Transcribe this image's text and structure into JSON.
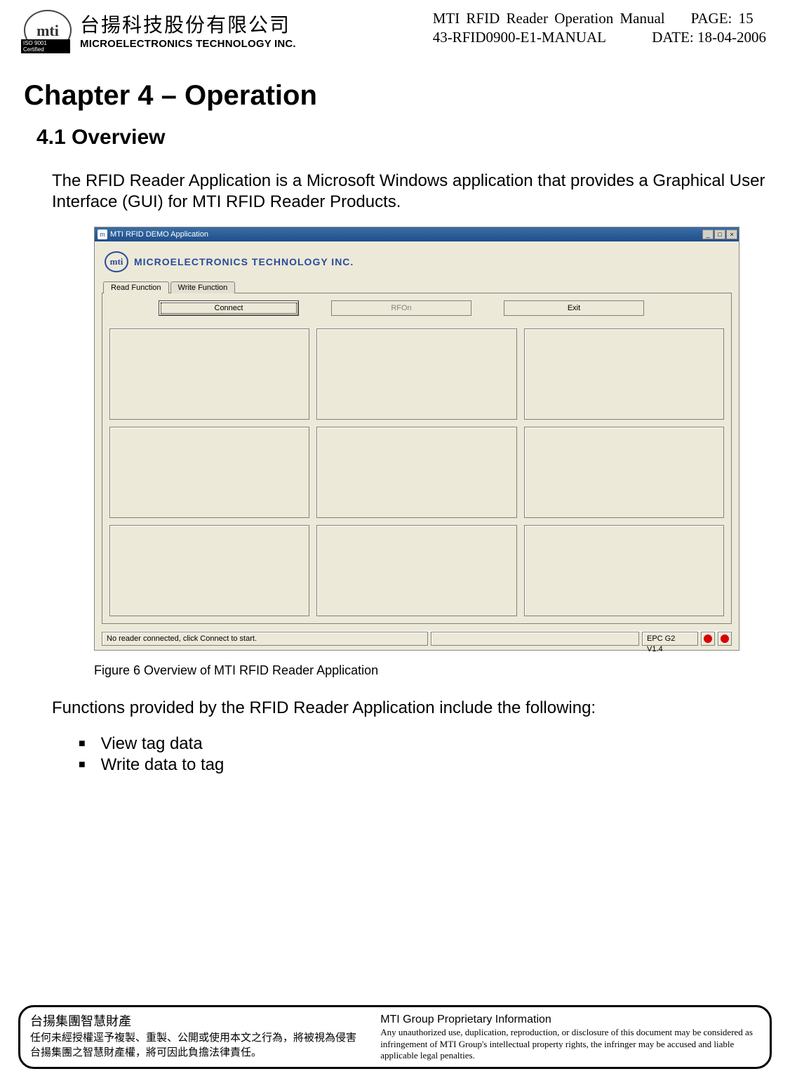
{
  "header": {
    "logo_text": "mti",
    "iso_badge": "ISO 9001 Certified",
    "company_cn": "台揚科技股份有限公司",
    "company_en": "MICROELECTRONICS TECHNOLOGY INC.",
    "doc_title": "MTI RFID Reader  Operation Manual",
    "page_label": "PAGE: 15",
    "doc_number": "43-RFID0900-E1-MANUAL",
    "date_label": "DATE: 18-04-2006"
  },
  "chapter_title": "Chapter 4 – Operation",
  "section_title": "4.1 Overview",
  "intro_text": "The RFID Reader Application is a Microsoft Windows application that provides a Graphical User Interface (GUI) for MTI RFID Reader Products.",
  "app_window": {
    "title": "MTI RFID DEMO Application",
    "brand_logo_text": "mti",
    "brand_text": "MICROELECTRONICS TECHNOLOGY INC.",
    "tabs": [
      "Read Function",
      "Write Function"
    ],
    "buttons": {
      "connect": "Connect",
      "rfon": "RFOn",
      "exit": "Exit"
    },
    "status_text": "No reader connected, click Connect to start.",
    "version_text": "EPC G2 V1.4",
    "led_color_1": "#d90000",
    "led_color_2": "#d90000",
    "window_controls": {
      "min": "_",
      "max": "□",
      "close": "×"
    }
  },
  "figure_caption": "Figure 6 Overview of MTI RFID Reader Application",
  "functions_intro": "Functions provided by the RFID Reader Application include the following:",
  "functions": [
    "View tag data",
    "Write data to tag"
  ],
  "footer": {
    "left_title": "台揚集團智慧財產",
    "left_line1": "任何未經授權逕予複製、重製、公開或使用本文之行為，將被視為侵害",
    "left_line2": "台揚集團之智慧財產權，將可因此負擔法律責任。",
    "right_title": "MTI Group Proprietary Information",
    "right_body": "Any unauthorized use, duplication, reproduction, or disclosure of this document may be considered as infringement of MTI Group's intellectual property rights, the infringer may be accused and liable applicable legal penalties."
  },
  "colors": {
    "page_bg": "#ffffff",
    "win_bg": "#ece9d8",
    "titlebar_start": "#3a6ea5",
    "titlebar_end": "#1e4e8c",
    "brand_blue": "#2a4b9b",
    "border_gray": "#808080",
    "disabled_text": "#808080"
  }
}
